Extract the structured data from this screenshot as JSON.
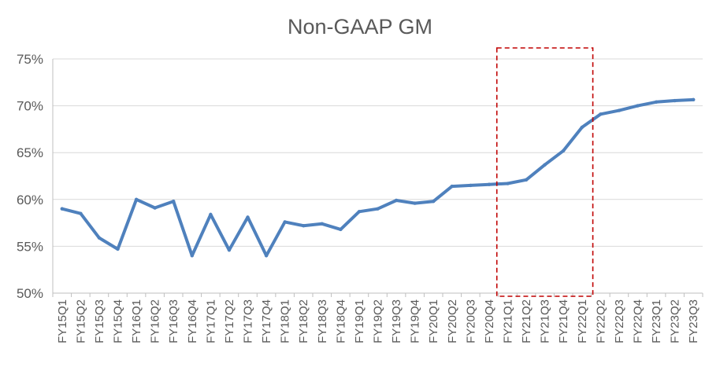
{
  "chart_data": {
    "type": "line",
    "title": "Non-GAAP GM",
    "xlabel": "",
    "ylabel": "",
    "ylim": [
      50,
      75
    ],
    "yticks": [
      50,
      55,
      60,
      65,
      70,
      75
    ],
    "ytick_labels": [
      "50%",
      "55%",
      "60%",
      "65%",
      "70%",
      "75%"
    ],
    "grid": true,
    "categories": [
      "FY15Q1",
      "FY15Q2",
      "FY15Q3",
      "FY15Q4",
      "FY16Q1",
      "FY16Q2",
      "FY16Q3",
      "FY16Q4",
      "FY17Q1",
      "FY17Q2",
      "FY17Q3",
      "FY17Q4",
      "FY18Q1",
      "FY18Q2",
      "FY18Q3",
      "FY18Q4",
      "FY19Q1",
      "FY19Q2",
      "FY19Q3",
      "FY19Q4",
      "FY20Q1",
      "FY20Q2",
      "FY20Q3",
      "FY20Q4",
      "FY21Q1",
      "FY21Q2",
      "FY21Q3",
      "FY21Q4",
      "FY22Q1",
      "FY22Q2",
      "FY22Q3",
      "FY22Q4",
      "FY23Q1",
      "FY23Q2",
      "FY23Q3"
    ],
    "series": [
      {
        "color": "#4f81bd",
        "values": [
          59.0,
          58.5,
          55.9,
          54.7,
          60.0,
          59.1,
          59.8,
          54.0,
          58.4,
          54.6,
          58.1,
          54.0,
          57.6,
          57.2,
          57.4,
          56.8,
          58.7,
          59.0,
          59.9,
          59.6,
          59.8,
          61.4,
          61.5,
          61.6,
          61.7,
          62.1,
          63.7,
          65.2,
          67.7,
          69.1,
          69.5,
          70.0,
          70.4,
          70.55,
          70.65
        ]
      }
    ],
    "highlight": {
      "color": "#c00000",
      "style": "dashed-box",
      "from_category": "FY21Q1",
      "to_category": "FY22Q1"
    }
  }
}
